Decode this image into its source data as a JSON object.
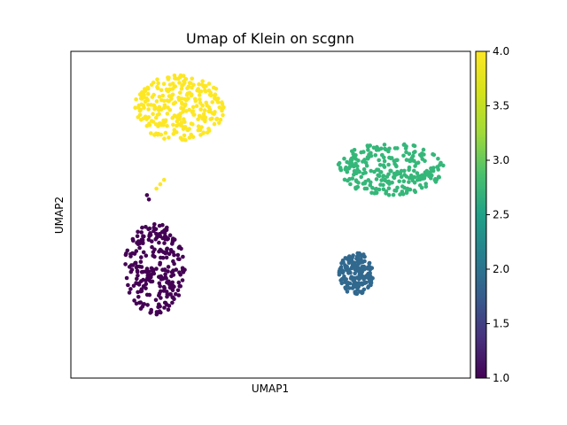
{
  "chart_data": {
    "type": "scatter",
    "title": "Umap of Klein on scgnn",
    "xlabel": "UMAP1",
    "ylabel": "UMAP2",
    "x_ticks": "none",
    "y_ticks": "none",
    "xlim": [
      -8,
      13
    ],
    "ylim": [
      -8,
      7
    ],
    "colorbar": {
      "colormap": "viridis",
      "range": [
        1.0,
        4.0
      ],
      "ticks": [
        "1.0",
        "1.5",
        "2.0",
        "2.5",
        "3.0",
        "3.5",
        "4.0"
      ]
    },
    "clusters": [
      {
        "value": 1.0,
        "color": "#440154",
        "center": [
          -3.6,
          -3.0
        ],
        "spread": [
          1.6,
          2.1
        ],
        "points": 260,
        "outliers": [
          [
            -4.0,
            0.4
          ],
          [
            -3.9,
            0.2
          ]
        ]
      },
      {
        "value": 2.0,
        "color": "#31688e",
        "center": [
          7.0,
          -3.2
        ],
        "spread": [
          0.9,
          1.0
        ],
        "points": 170
      },
      {
        "value": 3.0,
        "color": "#35b779",
        "center": [
          8.8,
          1.6
        ],
        "spread": [
          2.8,
          1.2
        ],
        "points": 260
      },
      {
        "value": 4.0,
        "color": "#fde725",
        "center": [
          -2.3,
          4.4
        ],
        "spread": [
          2.4,
          1.5
        ],
        "points": 280,
        "outliers": [
          [
            -3.1,
            1.1
          ],
          [
            -3.3,
            0.9
          ],
          [
            -3.5,
            0.7
          ]
        ]
      }
    ]
  }
}
